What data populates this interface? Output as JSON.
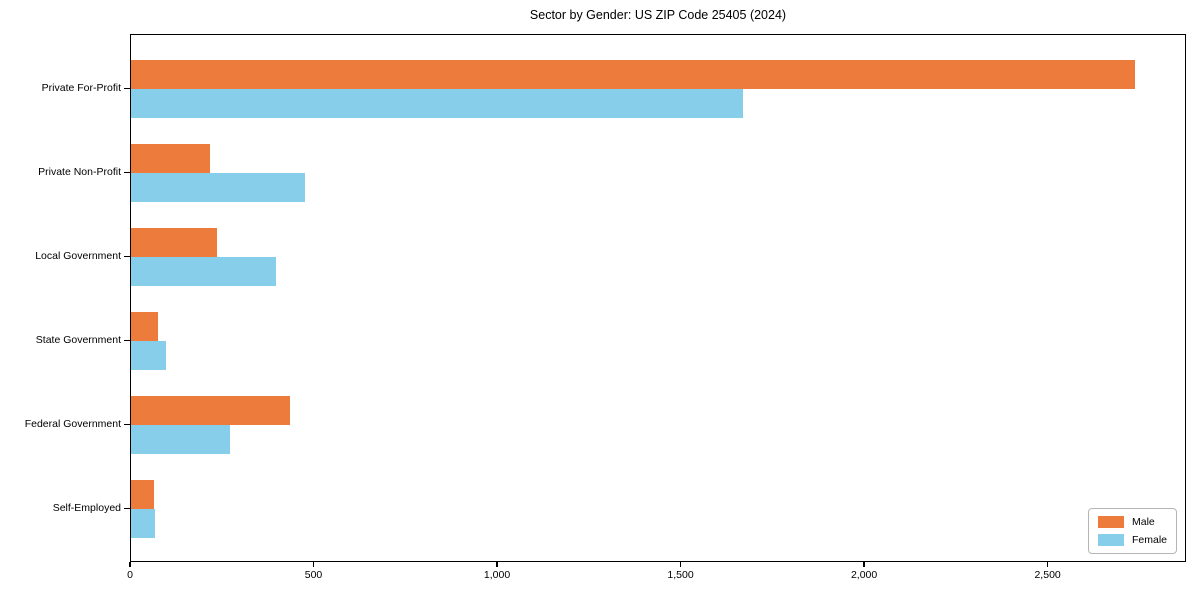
{
  "figure": {
    "title": "Sector by Gender: US ZIP Code 25405 (2024)",
    "background_color": "#ffffff",
    "spine_color": "#000000",
    "legend_border_color": "#b5b5b5"
  },
  "chart_data": {
    "type": "bar",
    "orientation": "horizontal",
    "title": "Sector by Gender: US ZIP Code 25405 (2024)",
    "categories": [
      "Private For-Profit",
      "Private Non-Profit",
      "Local Government",
      "State Government",
      "Federal Government",
      "Self-Employed"
    ],
    "series": [
      {
        "name": "Male",
        "color": "#ec7b3c",
        "values": [
          2740,
          215,
          235,
          75,
          435,
          62
        ]
      },
      {
        "name": "Female",
        "color": "#87ceeb",
        "values": [
          1670,
          475,
          395,
          95,
          270,
          65
        ]
      }
    ],
    "xlabel": "",
    "ylabel": "",
    "xlim": [
      0,
      2877
    ],
    "xticks": [
      0,
      500,
      1000,
      1500,
      2000,
      2500
    ],
    "xtick_labels": [
      "0",
      "500",
      "1,000",
      "1,500",
      "2,000",
      "2,500"
    ],
    "grid": false,
    "legend": {
      "position": "lower right"
    }
  }
}
